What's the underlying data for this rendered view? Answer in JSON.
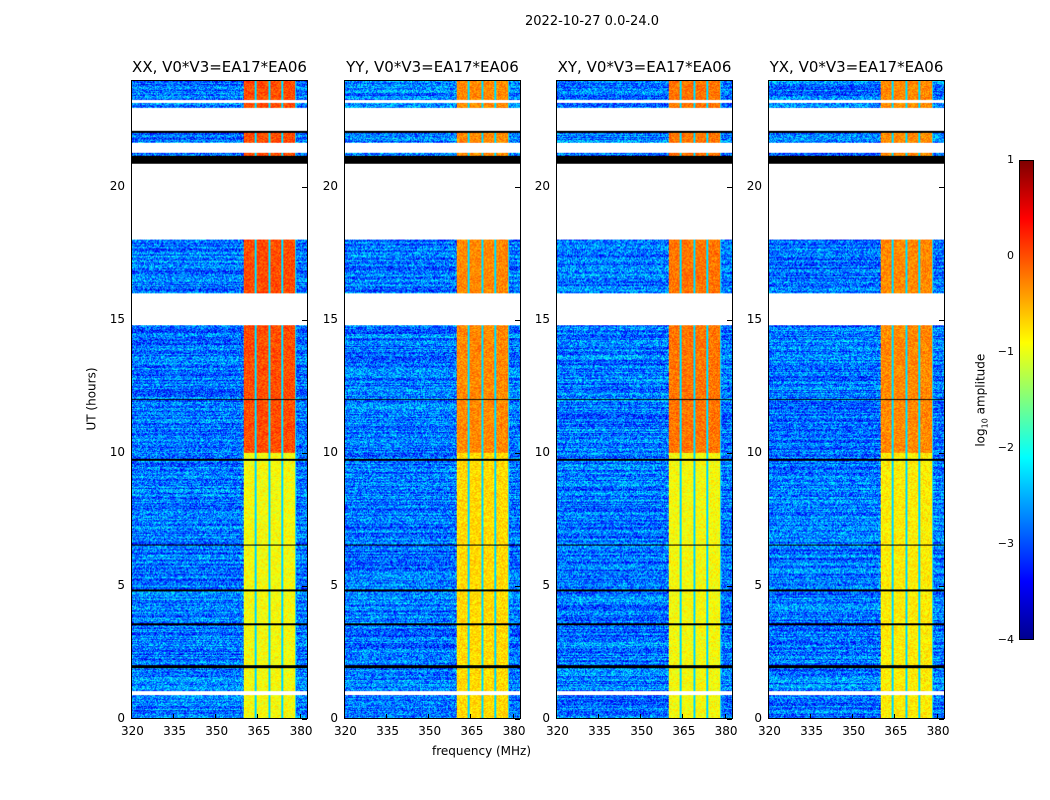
{
  "chart_data": {
    "type": "heatmap",
    "title": "2022-10-27 0.0-24.0",
    "xlabel": "frequency (MHz)",
    "ylabel": "UT (hours)",
    "xlim": [
      320,
      383
    ],
    "ylim": [
      0,
      24
    ],
    "xticks": [
      "320",
      "335",
      "350",
      "365",
      "380"
    ],
    "xtick_values": [
      320,
      335,
      350,
      365,
      380
    ],
    "yticks": [
      "0",
      "5",
      "10",
      "15",
      "20"
    ],
    "ytick_values": [
      0,
      5,
      10,
      15,
      20
    ],
    "panels": [
      {
        "title": "XX, V0*V3=EA17*EA06",
        "band_level_early": -0.9,
        "band_level_late": 0.0
      },
      {
        "title": "YY, V0*V3=EA17*EA06",
        "band_level_early": -0.7,
        "band_level_late": -0.3
      },
      {
        "title": "XY, V0*V3=EA17*EA06",
        "band_level_early": -0.9,
        "band_level_late": -0.2
      },
      {
        "title": "YX, V0*V3=EA17*EA06",
        "band_level_early": -0.8,
        "band_level_late": -0.3
      }
    ],
    "rfi_band_mhz": [
      360,
      379
    ],
    "background_level": -2.8,
    "flagged_hours": [
      [
        22.1,
        23.0
      ],
      [
        21.3,
        21.7
      ],
      [
        18.05,
        20.9
      ],
      [
        14.8,
        16.0
      ],
      [
        0.9,
        1.05
      ]
    ],
    "black_rows_hours": [
      [
        22.05,
        22.15
      ],
      [
        20.9,
        21.2
      ],
      [
        9.7,
        9.8
      ],
      [
        6.5,
        6.55
      ],
      [
        3.5,
        3.6
      ],
      [
        1.9,
        2.0
      ],
      [
        12.0,
        12.05
      ],
      [
        4.8,
        4.85
      ]
    ],
    "colorbar": {
      "label": "log10 amplitude",
      "label_main": "log",
      "label_sub": "10",
      "label_rest": " amplitude",
      "ticks": [
        "1",
        "0",
        "−1",
        "−2",
        "−3",
        "−4"
      ],
      "tick_values": [
        1,
        0,
        -1,
        -2,
        -3,
        -4
      ],
      "range": [
        -4,
        1
      ],
      "colormap": "jet"
    }
  }
}
